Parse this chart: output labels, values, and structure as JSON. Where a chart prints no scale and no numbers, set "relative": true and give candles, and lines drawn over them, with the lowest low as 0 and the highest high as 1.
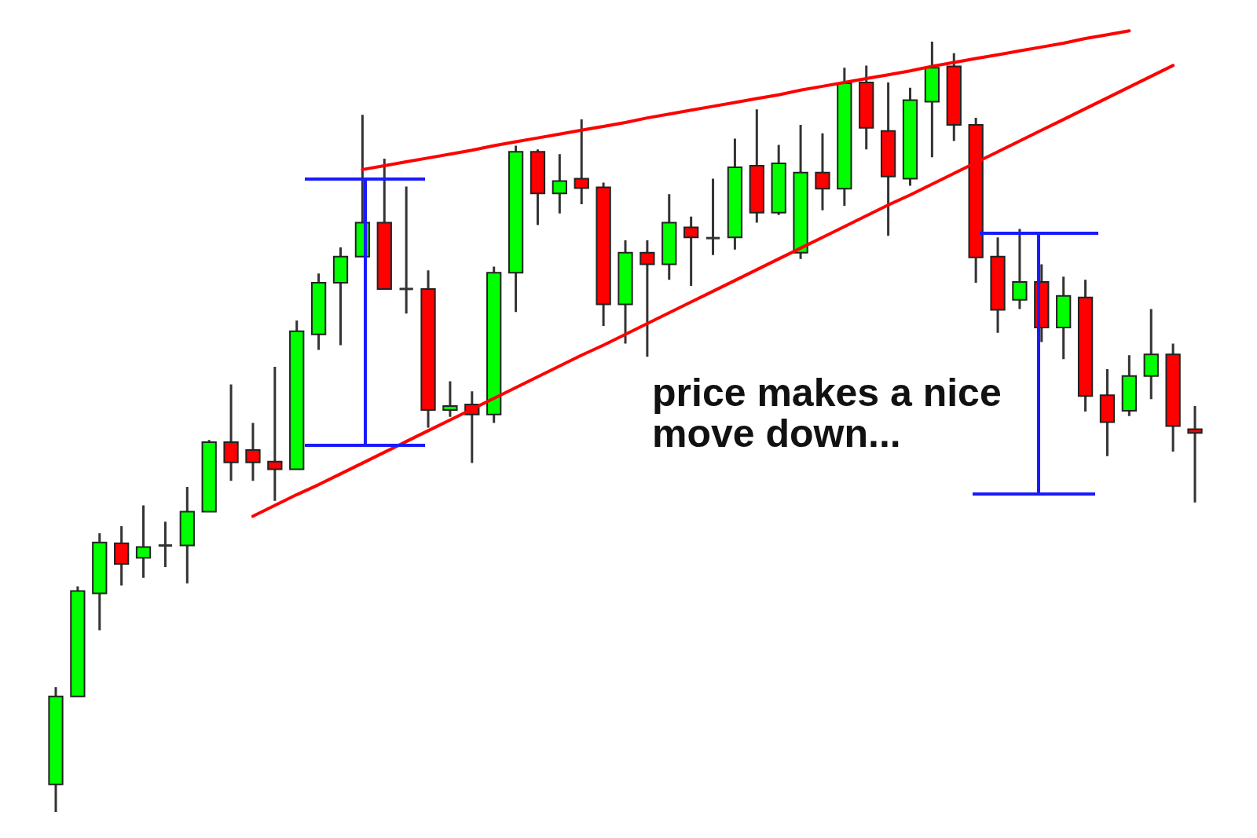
{
  "chart_data": {
    "type": "candlestick",
    "relative": true,
    "categories": [
      null,
      null,
      null,
      null,
      null,
      null,
      null,
      null,
      null,
      null,
      null,
      null,
      null,
      null,
      null,
      null,
      null,
      null,
      null,
      null,
      null,
      null,
      null,
      null,
      null,
      null,
      null,
      null,
      null,
      null,
      null,
      null,
      null,
      null,
      null,
      null,
      null,
      null,
      null,
      null,
      null,
      null,
      null,
      null,
      null,
      null,
      null,
      null,
      null,
      null,
      null,
      null,
      null
    ],
    "ohlc": [
      [
        0.036,
        0.162,
        0,
        0.15
      ],
      [
        0.15,
        0.293,
        0.15,
        0.287
      ],
      [
        0.284,
        0.362,
        0.236,
        0.35
      ],
      [
        0.349,
        0.371,
        0.294,
        0.322
      ],
      [
        0.33,
        0.398,
        0.304,
        0.344
      ],
      [
        0.346,
        0.377,
        0.318,
        0.346
      ],
      [
        0.346,
        0.422,
        0.297,
        0.39
      ],
      [
        0.39,
        0.483,
        0.39,
        0.48
      ],
      [
        0.48,
        0.555,
        0.43,
        0.454
      ],
      [
        0.47,
        0.505,
        0.43,
        0.454
      ],
      [
        0.455,
        0.578,
        0.404,
        0.445
      ],
      [
        0.445,
        0.638,
        0.445,
        0.624
      ],
      [
        0.62,
        0.699,
        0.6,
        0.687
      ],
      [
        0.687,
        0.733,
        0.606,
        0.721
      ],
      [
        0.721,
        0.905,
        0.721,
        0.765
      ],
      [
        0.765,
        0.848,
        0.679,
        0.679
      ],
      [
        0.679,
        0.812,
        0.647,
        0.679
      ],
      [
        0.679,
        0.703,
        0.499,
        0.522
      ],
      [
        0.522,
        0.559,
        0.513,
        0.527
      ],
      [
        0.529,
        0.546,
        0.453,
        0.516
      ],
      [
        0.516,
        0.708,
        0.505,
        0.7
      ],
      [
        0.7,
        0.865,
        0.649,
        0.857
      ],
      [
        0.857,
        0.86,
        0.762,
        0.803
      ],
      [
        0.803,
        0.854,
        0.777,
        0.819
      ],
      [
        0.822,
        0.899,
        0.789,
        0.81
      ],
      [
        0.811,
        0.817,
        0.631,
        0.659
      ],
      [
        0.659,
        0.742,
        0.608,
        0.726
      ],
      [
        0.726,
        0.742,
        0.591,
        0.711
      ],
      [
        0.711,
        0.802,
        0.691,
        0.765
      ],
      [
        0.759,
        0.773,
        0.683,
        0.746
      ],
      [
        0.745,
        0.822,
        0.723,
        0.745
      ],
      [
        0.746,
        0.874,
        0.73,
        0.837
      ],
      [
        0.839,
        0.912,
        0.765,
        0.778
      ],
      [
        0.778,
        0.866,
        0.775,
        0.842
      ],
      [
        0.726,
        0.892,
        0.718,
        0.83
      ],
      [
        0.83,
        0.881,
        0.781,
        0.809
      ],
      [
        0.809,
        0.966,
        0.787,
        0.946
      ],
      [
        0.947,
        0.969,
        0.86,
        0.888
      ],
      [
        0.884,
        0.947,
        0.748,
        0.825
      ],
      [
        0.822,
        0.94,
        0.813,
        0.924
      ],
      [
        0.922,
        1,
        0.85,
        0.966
      ],
      [
        0.968,
        0.985,
        0.871,
        0.892
      ],
      [
        0.892,
        0.901,
        0.687,
        0.72
      ],
      [
        0.721,
        0.746,
        0.622,
        0.652
      ],
      [
        0.665,
        0.757,
        0.653,
        0.688
      ],
      [
        0.688,
        0.711,
        0.61,
        0.629
      ],
      [
        0.629,
        0.695,
        0.588,
        0.67
      ],
      [
        0.668,
        0.691,
        0.52,
        0.54
      ],
      [
        0.541,
        0.575,
        0.462,
        0.506
      ],
      [
        0.521,
        0.593,
        0.514,
        0.566
      ],
      [
        0.566,
        0.653,
        0.536,
        0.594
      ],
      [
        0.594,
        0.608,
        0.468,
        0.501
      ],
      [
        0.497,
        0.527,
        0.402,
        0.492
      ]
    ],
    "colors": [
      "#00ff00",
      "#00ff00",
      "#00ff00",
      "#ff0000",
      "#00ff00",
      "#333333",
      "#00ff00",
      "#00ff00",
      "#ff0000",
      "#ff0000",
      "#ff0000",
      "#00ff00",
      "#00ff00",
      "#00ff00",
      "#00ff00",
      "#ff0000",
      "#333333",
      "#ff0000",
      "#00ff00",
      "#ff0000",
      "#00ff00",
      "#00ff00",
      "#ff0000",
      "#00ff00",
      "#ff0000",
      "#ff0000",
      "#00ff00",
      "#ff0000",
      "#00ff00",
      "#ff0000",
      "#333333",
      "#00ff00",
      "#ff0000",
      "#00ff00",
      "#00ff00",
      "#ff0000",
      "#00ff00",
      "#ff0000",
      "#ff0000",
      "#00ff00",
      "#00ff00",
      "#ff0000",
      "#ff0000",
      "#ff0000",
      "#00ff00",
      "#ff0000",
      "#00ff00",
      "#ff0000",
      "#ff0000",
      "#00ff00",
      "#00ff00",
      "#ff0000",
      "#ff0000"
    ],
    "series": [
      {
        "type": "line",
        "color": "#ff0000",
        "values": [
          null,
          null,
          null,
          null,
          null,
          null,
          null,
          null,
          null,
          null,
          null,
          null,
          null,
          null,
          0.834,
          0.839,
          0.844,
          0.849,
          0.854,
          0.859,
          0.865,
          0.87,
          0.875,
          0.88,
          0.885,
          0.89,
          0.895,
          0.901,
          0.906,
          0.911,
          0.916,
          0.921,
          0.926,
          0.931,
          0.937,
          0.942,
          0.947,
          0.952,
          0.957,
          0.962,
          0.968,
          0.973,
          0.978,
          0.983,
          0.988,
          0.993,
          0.998,
          1.004,
          1.009,
          1.014,
          null,
          null,
          null
        ]
      },
      {
        "type": "line",
        "color": "#ff0000",
        "values": [
          null,
          null,
          null,
          null,
          null,
          null,
          null,
          null,
          null,
          0.384,
          0.398,
          0.412,
          0.425,
          0.439,
          0.453,
          0.467,
          0.481,
          0.495,
          0.509,
          0.523,
          0.537,
          0.551,
          0.565,
          0.579,
          0.593,
          0.606,
          0.62,
          0.634,
          0.648,
          0.662,
          0.676,
          0.69,
          0.704,
          0.718,
          0.732,
          0.746,
          0.76,
          0.774,
          0.788,
          0.801,
          0.815,
          0.829,
          0.843,
          0.857,
          0.871,
          0.885,
          0.899,
          0.913,
          0.927,
          0.941,
          0.955,
          0.969,
          null
        ]
      }
    ],
    "annotations": [
      "price makes a nice move down..."
    ]
  }
}
